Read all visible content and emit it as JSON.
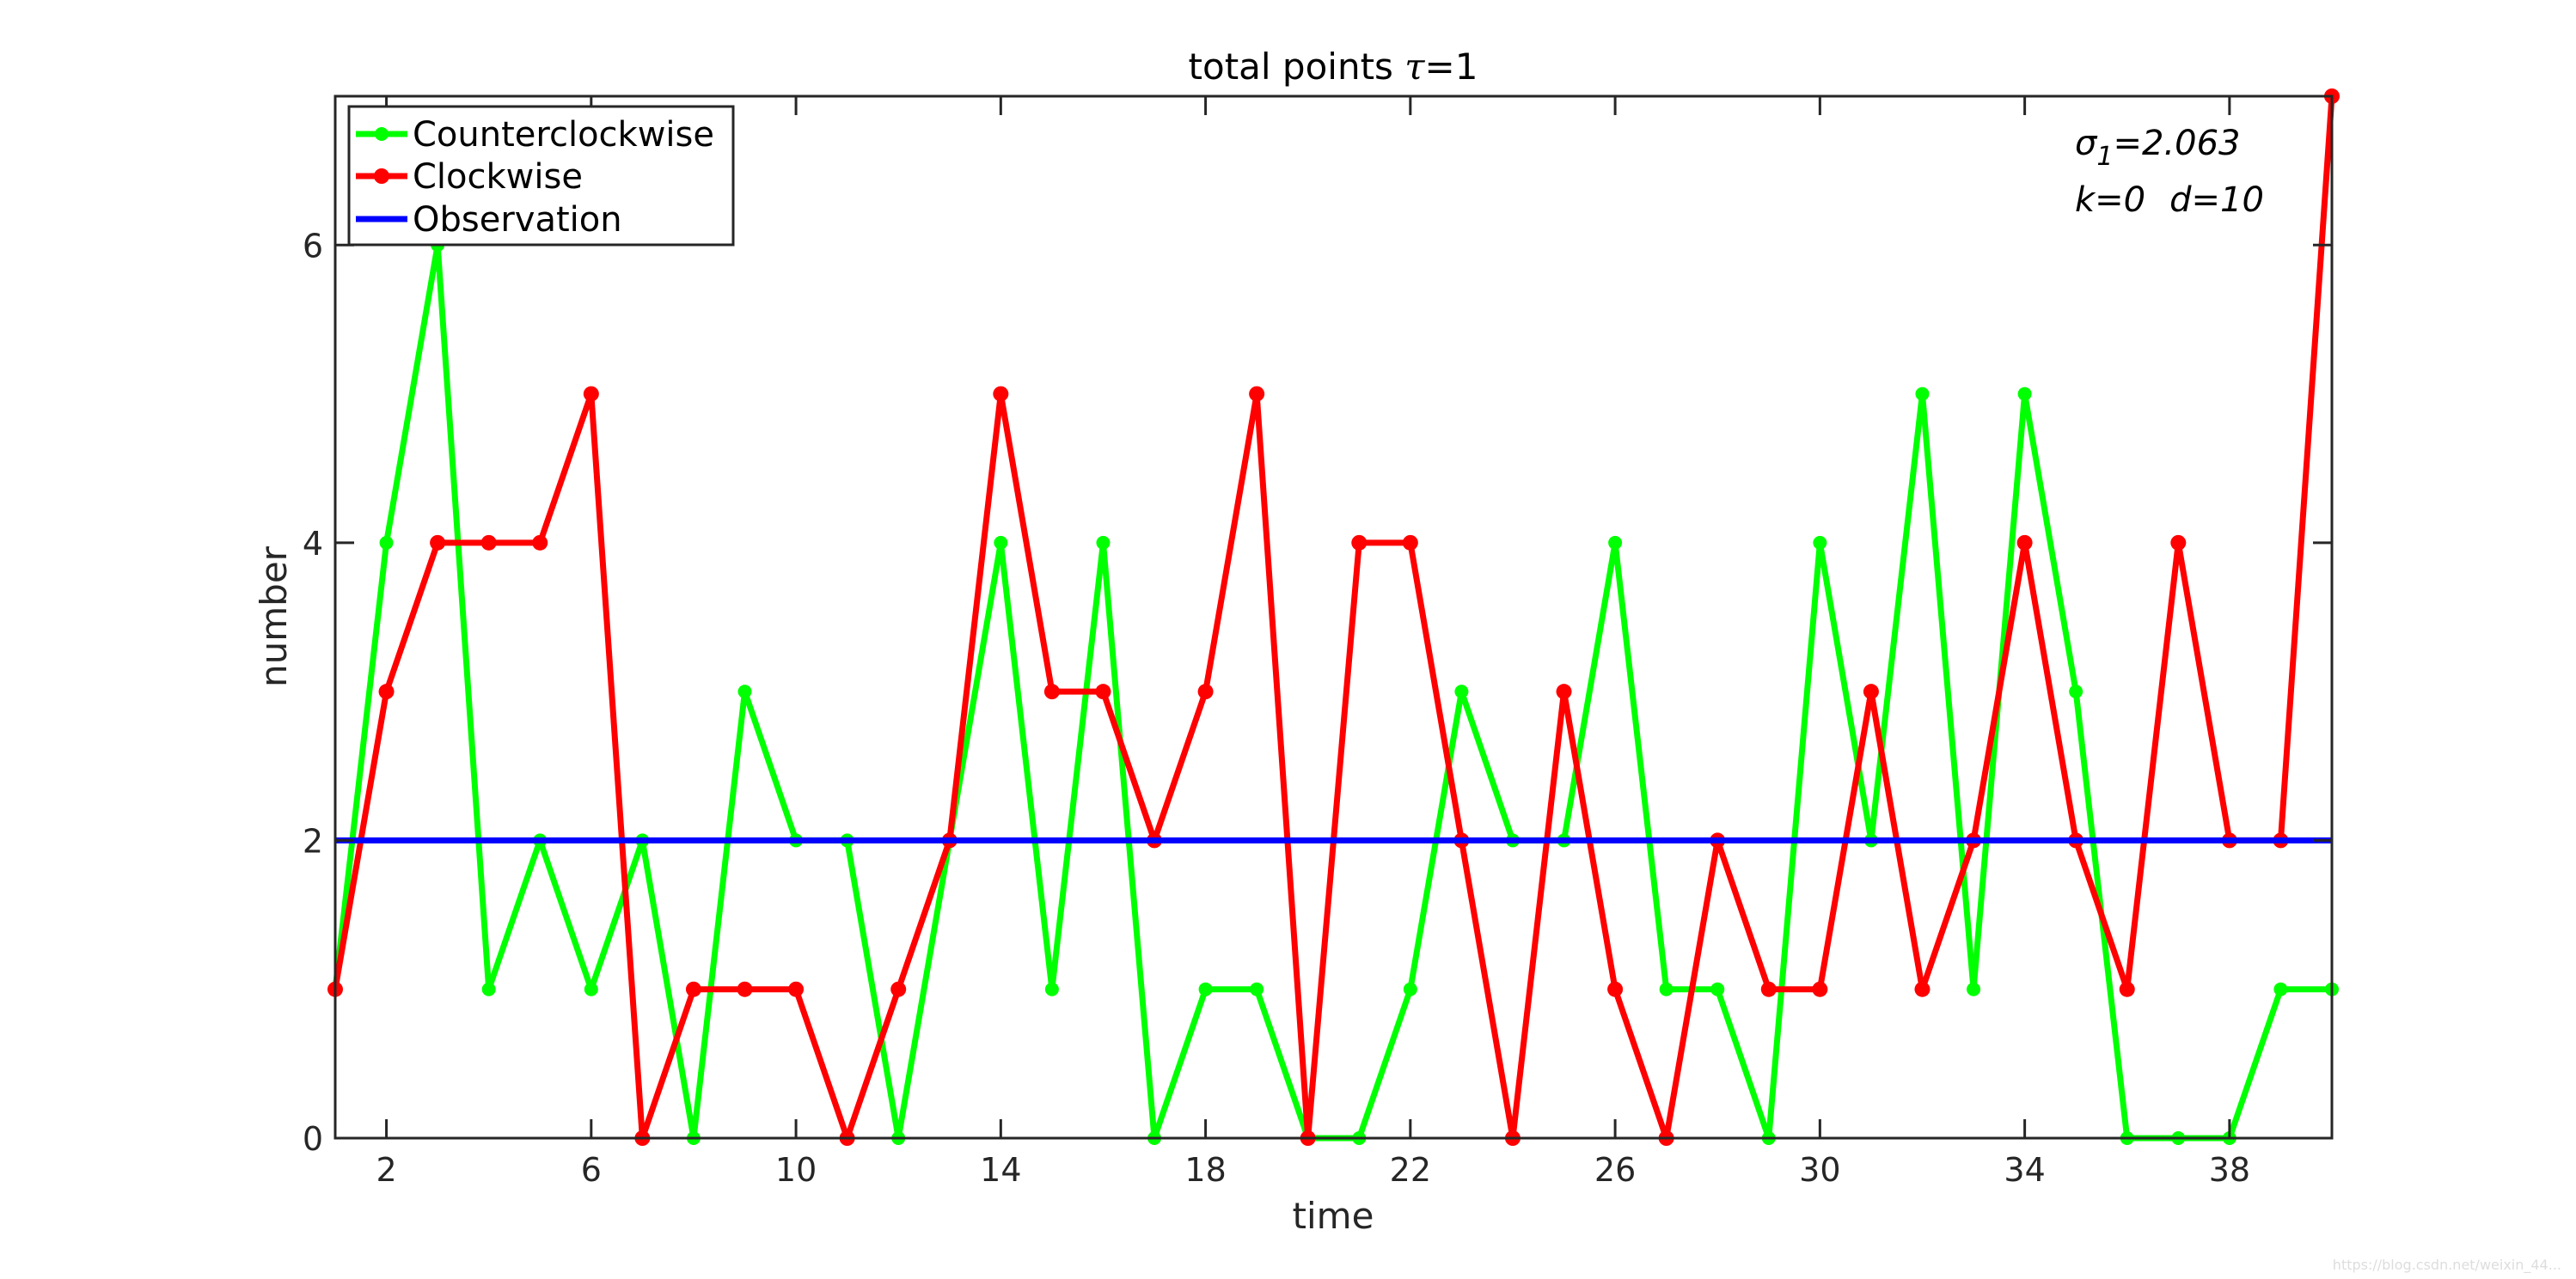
{
  "chart_data": {
    "type": "line",
    "title": "total points τ=1",
    "title_main": "total points ",
    "title_symbol": "τ",
    "title_rest": "=1",
    "xlabel": "time",
    "ylabel": "number",
    "xlim": [
      1,
      40
    ],
    "ylim": [
      0,
      7
    ],
    "xticks": [
      2,
      6,
      10,
      14,
      18,
      22,
      26,
      30,
      34,
      38
    ],
    "yticks": [
      0,
      2,
      4,
      6
    ],
    "grid": false,
    "legend_position": "top-left",
    "x": [
      1,
      2,
      3,
      4,
      5,
      6,
      7,
      8,
      9,
      10,
      11,
      12,
      13,
      14,
      15,
      16,
      17,
      18,
      19,
      20,
      21,
      22,
      23,
      24,
      25,
      26,
      27,
      28,
      29,
      30,
      31,
      32,
      33,
      34,
      35,
      36,
      37,
      38,
      39,
      40
    ],
    "series": [
      {
        "name": "Counterclockwise",
        "color": "#00ff00",
        "marker": "circle",
        "values": [
          1,
          4,
          6,
          1,
          2,
          1,
          2,
          0,
          3,
          2,
          2,
          0,
          2,
          4,
          1,
          4,
          0,
          1,
          1,
          0,
          0,
          1,
          3,
          2,
          2,
          4,
          1,
          1,
          0,
          4,
          2,
          5,
          1,
          5,
          3,
          0,
          0,
          0,
          1,
          1
        ]
      },
      {
        "name": "Clockwise",
        "color": "#ff0000",
        "marker": "star",
        "values": [
          1,
          3,
          4,
          4,
          4,
          5,
          0,
          1,
          1,
          1,
          0,
          1,
          2,
          5,
          3,
          3,
          2,
          3,
          5,
          0,
          4,
          4,
          2,
          0,
          3,
          1,
          0,
          2,
          1,
          1,
          3,
          1,
          2,
          4,
          2,
          1,
          4,
          2,
          2,
          7
        ]
      },
      {
        "name": "Observation",
        "color": "#0000ff",
        "marker": "none",
        "values": [
          2,
          2,
          2,
          2,
          2,
          2,
          2,
          2,
          2,
          2,
          2,
          2,
          2,
          2,
          2,
          2,
          2,
          2,
          2,
          2,
          2,
          2,
          2,
          2,
          2,
          2,
          2,
          2,
          2,
          2,
          2,
          2,
          2,
          2,
          2,
          2,
          2,
          2,
          2,
          2
        ]
      }
    ],
    "annotations": {
      "sigma_symbol": "σ",
      "sigma_subscript": "1",
      "sigma_value": "=2.063",
      "k_text": "k=0",
      "d_text": "d=10"
    }
  },
  "watermark": "https://blog.csdn.net/weixin_44..."
}
